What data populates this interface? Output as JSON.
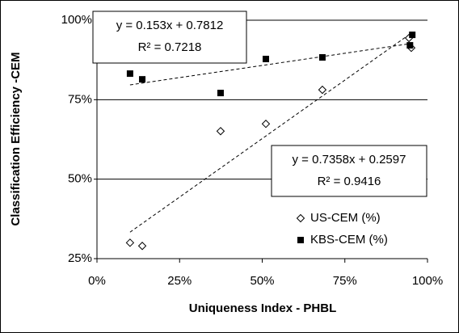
{
  "chart_data": {
    "type": "scatter",
    "xlabel": "Uniqueness Index - PHBL",
    "ylabel": "Classification Efficiency -CEM",
    "xlim": [
      0,
      100
    ],
    "ylim": [
      25,
      100
    ],
    "xticks": [
      {
        "value": 0,
        "label": "0%"
      },
      {
        "value": 25,
        "label": "25%"
      },
      {
        "value": 50,
        "label": "50%"
      },
      {
        "value": 75,
        "label": "75%"
      },
      {
        "value": 100,
        "label": "100%"
      }
    ],
    "yticks": [
      {
        "value": 25,
        "label": "25%"
      },
      {
        "value": 50,
        "label": "50%"
      },
      {
        "value": 75,
        "label": "75%"
      },
      {
        "value": 100,
        "label": "100%"
      }
    ],
    "grid": true,
    "legend": "lower right",
    "series": [
      {
        "name": "US-CEM (%)",
        "marker": "diamond",
        "color": "#000000",
        "x": [
          10.0,
          13.7,
          37.4,
          51.1,
          68.2,
          95.1,
          94.4
        ],
        "values": [
          30,
          29,
          65.1,
          67.4,
          78.1,
          91.3,
          94.4
        ]
      },
      {
        "name": "KBS-CEM (%)",
        "marker": "square",
        "color": "#000000",
        "x": [
          10.0,
          13.7,
          37.4,
          51.1,
          68.2,
          94.7,
          95.4
        ],
        "values": [
          83.2,
          81.4,
          77.1,
          87.8,
          88.3,
          92.1,
          95.4
        ]
      }
    ],
    "trendlines": [
      {
        "equation": "y = 0.153x + 0.7812",
        "r2": "R² = 0.7218",
        "x": [
          10,
          95
        ],
        "values": [
          79.65,
          92.66
        ]
      },
      {
        "equation": "y = 0.7358x + 0.2597",
        "r2": "R² = 0.9416",
        "x": [
          10,
          95
        ],
        "values": [
          33.33,
          95.87
        ]
      }
    ]
  }
}
